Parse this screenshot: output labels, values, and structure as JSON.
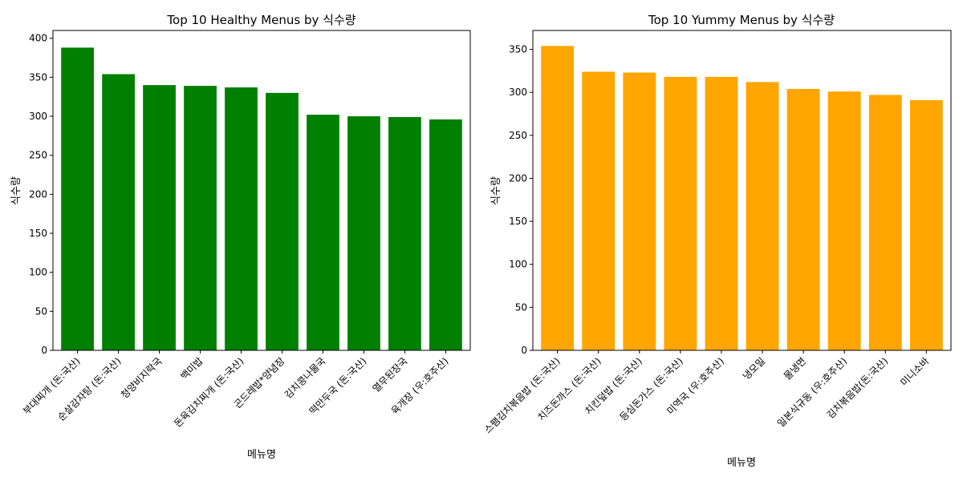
{
  "chart_data": [
    {
      "type": "bar",
      "title": "Top 10 Healthy Menus by 식수량",
      "xlabel": "메뉴명",
      "ylabel": "식수량",
      "ylim": [
        0,
        410
      ],
      "yticks": [
        0,
        50,
        100,
        150,
        200,
        250,
        300,
        350,
        400
      ],
      "grid": false,
      "color": "#008000",
      "categories": [
        "부대찌개 (돈:국산)",
        "순살감자탕 (돈:국산)",
        "청양비지락국",
        "백미밥",
        "돈육김치찌개 (돈:국산)",
        "곤드레밥*양념장",
        "김치콩나물국",
        "떡만두국 (돈:국산)",
        "열무된장국",
        "육개장 (우:호주산)"
      ],
      "values": [
        388,
        354,
        340,
        339,
        337,
        330,
        302,
        300,
        299,
        296
      ]
    },
    {
      "type": "bar",
      "title": "Top 10 Yummy Menus by 식수량",
      "xlabel": "메뉴명",
      "ylabel": "식수량",
      "ylim": [
        0,
        372
      ],
      "yticks": [
        0,
        50,
        100,
        150,
        200,
        250,
        300,
        350
      ],
      "grid": false,
      "color": "#FFA500",
      "categories": [
        "스팸김치볶음밥 (돈:국산)",
        "치즈돈까스 (돈:국산)",
        "치킨덮밥 (돈:국산)",
        "등심돈가스 (돈:국산)",
        "미역국 (우:호주산)",
        "냉모밀",
        "물냉면",
        "일본식규동 (우:호주산)",
        "김치볶음밥(돈:국산)",
        "미니소바"
      ],
      "values": [
        354,
        324,
        323,
        318,
        318,
        312,
        304,
        301,
        297,
        291
      ]
    }
  ]
}
